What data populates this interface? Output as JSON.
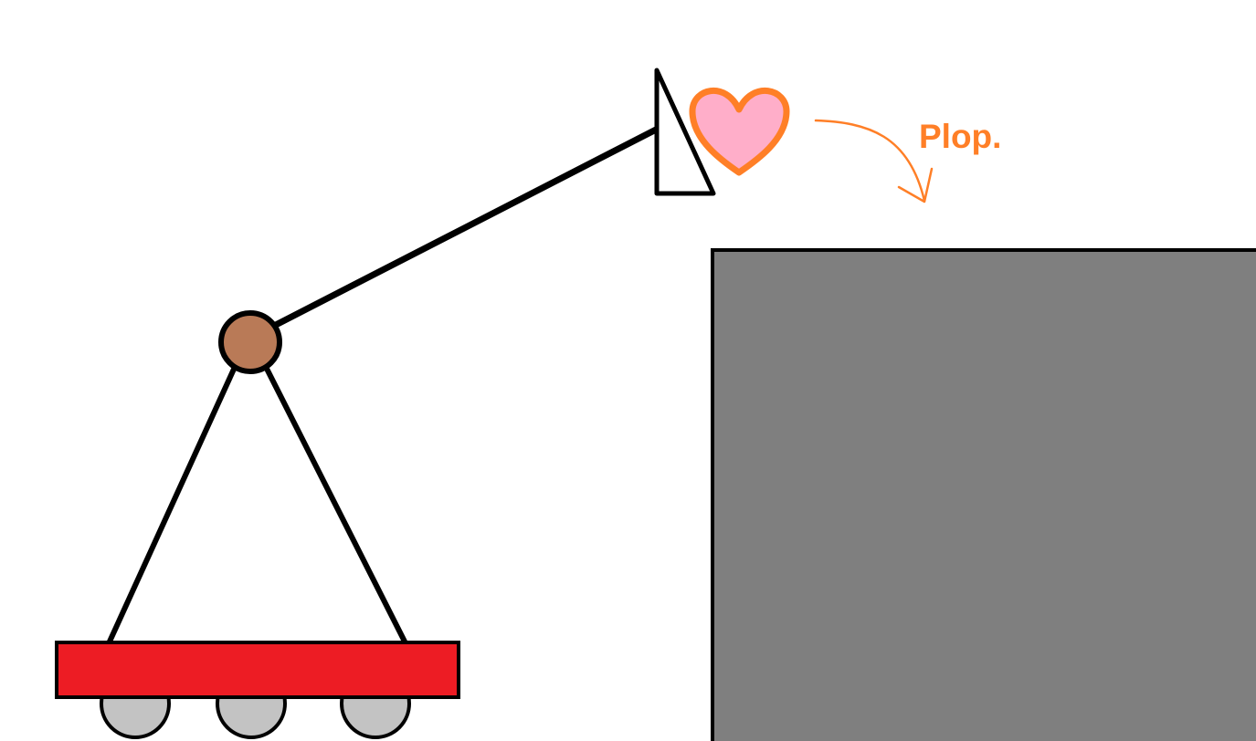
{
  "scene": {
    "caption": "Plop.",
    "colors": {
      "background": "#ffffff",
      "outline": "#000000",
      "cart_body": "#ed1c24",
      "wheel": "#c3c3c3",
      "pivot_joint": "#b97a57",
      "heart_fill": "#ffaec9",
      "accent_orange": "#ff7f27",
      "block": "#7f7f7f"
    },
    "parts": [
      "cart",
      "wheels",
      "support-legs",
      "pivot-joint",
      "arm",
      "triangular-hook",
      "heart",
      "motion-arrow",
      "block"
    ]
  }
}
